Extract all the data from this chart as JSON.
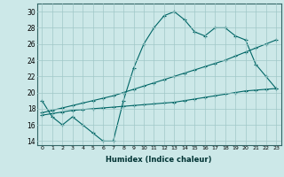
{
  "xlabel": "Humidex (Indice chaleur)",
  "bg_color": "#cce8e8",
  "grid_color": "#a0c8c8",
  "line_color": "#006666",
  "xlim": [
    -0.5,
    23.5
  ],
  "ylim": [
    13.5,
    31
  ],
  "xticks": [
    0,
    1,
    2,
    3,
    4,
    5,
    6,
    7,
    8,
    9,
    10,
    11,
    12,
    13,
    14,
    15,
    16,
    17,
    18,
    19,
    20,
    21,
    22,
    23
  ],
  "yticks": [
    14,
    16,
    18,
    20,
    22,
    24,
    26,
    28,
    30
  ],
  "line1_x": [
    0,
    1,
    2,
    3,
    4,
    5,
    6,
    7,
    8,
    9,
    10,
    11,
    12,
    13,
    14,
    15,
    16,
    17,
    18,
    19,
    20,
    21,
    22,
    23
  ],
  "line1_y": [
    19,
    17,
    16,
    17,
    16,
    15,
    14,
    14,
    19,
    23,
    26,
    28,
    29.5,
    30,
    29,
    27.5,
    27,
    28,
    28,
    27,
    26.5,
    23.5,
    22,
    20.5
  ],
  "line2_x": [
    0,
    1,
    2,
    3,
    4,
    5,
    6,
    7,
    8,
    9,
    10,
    11,
    12,
    13,
    14,
    15,
    16,
    17,
    18,
    19,
    20,
    21,
    22,
    23
  ],
  "line2_y": [
    17.5,
    17.8,
    18.1,
    18.4,
    18.7,
    19.0,
    19.3,
    19.6,
    20.0,
    20.4,
    20.8,
    21.2,
    21.6,
    22.0,
    22.4,
    22.8,
    23.2,
    23.6,
    24.0,
    24.5,
    25.0,
    25.5,
    26.0,
    26.5
  ],
  "line3_x": [
    0,
    1,
    2,
    3,
    4,
    5,
    6,
    7,
    8,
    9,
    10,
    11,
    12,
    13,
    14,
    15,
    16,
    17,
    18,
    19,
    20,
    21,
    22,
    23
  ],
  "line3_y": [
    17.2,
    17.4,
    17.6,
    17.8,
    17.9,
    18.0,
    18.1,
    18.2,
    18.3,
    18.4,
    18.5,
    18.6,
    18.7,
    18.8,
    19.0,
    19.2,
    19.4,
    19.6,
    19.8,
    20.0,
    20.2,
    20.3,
    20.4,
    20.5
  ]
}
